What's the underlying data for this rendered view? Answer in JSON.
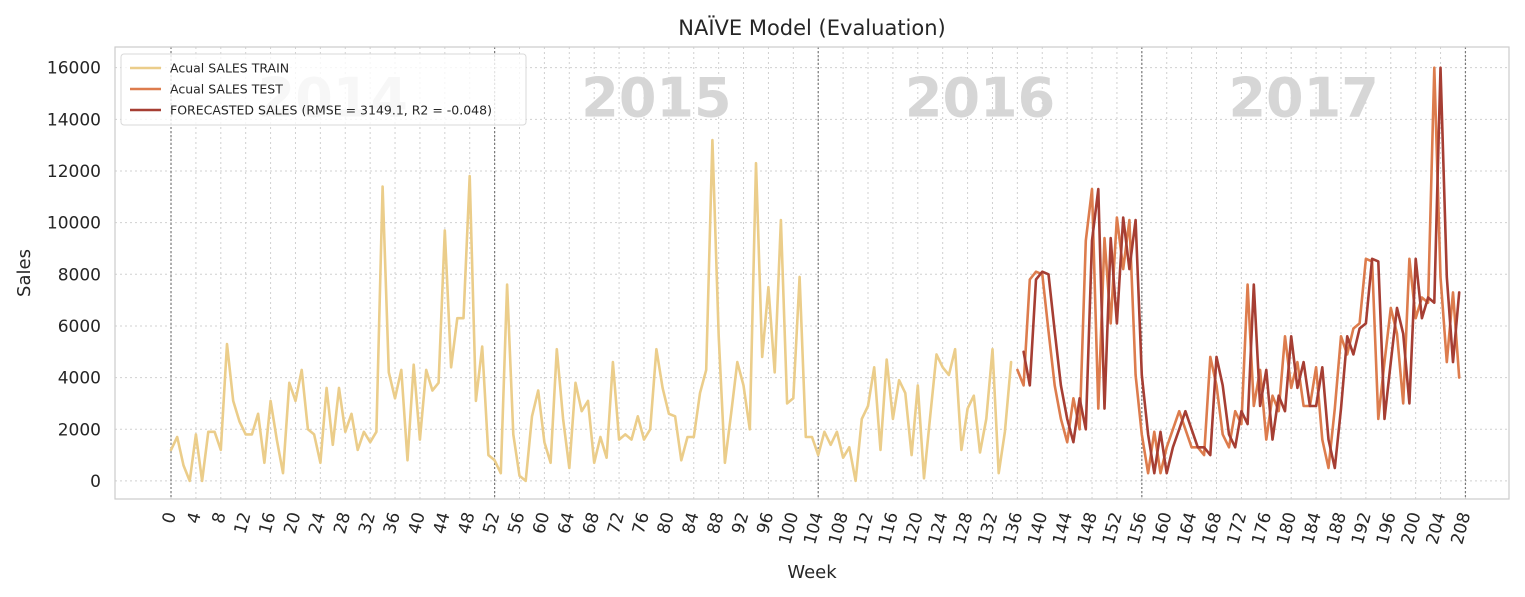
{
  "chart_data": {
    "type": "line",
    "title": "NAÏVE Model (Evaluation)",
    "xlabel": "Week",
    "ylabel": "Sales",
    "xlim": [
      -9,
      215
    ],
    "ylim": [
      -700,
      16800
    ],
    "x_ticks": [
      0,
      4,
      8,
      12,
      16,
      20,
      24,
      28,
      32,
      36,
      40,
      44,
      48,
      52,
      56,
      60,
      64,
      68,
      72,
      76,
      80,
      84,
      88,
      92,
      96,
      100,
      104,
      108,
      112,
      116,
      120,
      124,
      128,
      132,
      136,
      140,
      144,
      148,
      152,
      156,
      160,
      164,
      168,
      172,
      176,
      180,
      184,
      188,
      192,
      196,
      200,
      204,
      208
    ],
    "y_ticks": [
      0,
      2000,
      4000,
      6000,
      8000,
      10000,
      12000,
      14000,
      16000
    ],
    "grid": true,
    "legend_position": "upper-left",
    "year_boundaries": [
      0,
      52,
      104,
      156,
      208
    ],
    "year_labels": [
      {
        "text": "2014",
        "x": 26,
        "y": 14100
      },
      {
        "text": "2015",
        "x": 78,
        "y": 14100
      },
      {
        "text": "2016",
        "x": 130,
        "y": 14100
      },
      {
        "text": "2017",
        "x": 182,
        "y": 14100
      }
    ],
    "series": [
      {
        "name": "Acual SALES TRAIN",
        "color": "#ebcd8a",
        "x_start": 0,
        "values": [
          1200,
          1700,
          600,
          0,
          1800,
          0,
          1900,
          1900,
          1200,
          5300,
          3100,
          2300,
          1800,
          1800,
          2600,
          700,
          3100,
          1600,
          300,
          3800,
          3100,
          4300,
          2000,
          1800,
          700,
          3600,
          1400,
          3600,
          1900,
          2600,
          1200,
          1900,
          1500,
          1900,
          11400,
          4200,
          3200,
          4300,
          800,
          4500,
          1600,
          4300,
          3500,
          3800,
          9700,
          4400,
          6300,
          6300,
          11800,
          3100,
          5200,
          1000,
          800,
          300,
          7600,
          1800,
          200,
          0,
          2500,
          3500,
          1500,
          700,
          5100,
          2400,
          500,
          3800,
          2700,
          3100,
          700,
          1700,
          900,
          4600,
          1600,
          1800,
          1600,
          2500,
          1600,
          2000,
          5100,
          3600,
          2600,
          2500,
          800,
          1700,
          1700,
          3400,
          4300,
          13200,
          5600,
          700,
          2600,
          4600,
          3700,
          2000,
          12300,
          4800,
          7500,
          4200,
          10100,
          3000,
          3200,
          7900,
          1700,
          1700,
          1000,
          1900,
          1400,
          1900,
          900,
          1300,
          0,
          2400,
          2900,
          4400,
          1200,
          4700,
          2400,
          3900,
          3400,
          1000,
          3700,
          100,
          2500,
          4900,
          4400,
          4100,
          5100,
          1200,
          2800,
          3300,
          1100,
          2400,
          5100,
          300,
          1900,
          4600
        ]
      },
      {
        "name": "Acual SALES TEST",
        "color": "#dd7c4d",
        "x_start": 136,
        "values": [
          4300,
          3700,
          7800,
          8100,
          8000,
          5800,
          3700,
          2400,
          1500,
          3200,
          2000,
          9300,
          11300,
          2800,
          9400,
          6100,
          10200,
          8200,
          10100,
          4100,
          1800,
          300,
          1900,
          300,
          1300,
          2000,
          2700,
          2000,
          1300,
          1300,
          1000,
          4800,
          3700,
          1800,
          1300,
          2700,
          2200,
          7600,
          2900,
          4300,
          1600,
          3300,
          2700,
          5600,
          3600,
          4600,
          2900,
          2900,
          4400,
          1600,
          500,
          2800,
          5600,
          4900,
          5900,
          6100,
          8600,
          8500,
          2400,
          4600,
          6700,
          5700,
          3000,
          8600,
          6300,
          7100,
          6900,
          16000,
          7900,
          4600,
          7300,
          4000
        ]
      },
      {
        "name": "FORECASTED SALES (RMSE = 3149.1, R2 = -0.048)",
        "color": "#a63e33",
        "x_start": 137,
        "values": [
          4300,
          3700,
          7800,
          8100,
          8000,
          5800,
          3700,
          2400,
          1500,
          3200,
          2000,
          9300,
          11300,
          2800,
          9400,
          6100,
          10200,
          8200,
          10100,
          4100,
          1800,
          300,
          1900,
          300,
          1300,
          2000,
          2700,
          2000,
          1300,
          1300,
          1000,
          4800,
          3700,
          1800,
          1300,
          2700,
          2200,
          7600,
          2900,
          4300,
          1600,
          3300,
          2700,
          5600,
          3600,
          4600,
          2900,
          2900,
          4400,
          1600,
          500,
          2800,
          5600,
          4900,
          5900,
          6100,
          8600,
          8500,
          2400,
          4600,
          6700,
          5700,
          3000,
          8600,
          6300,
          7100,
          6900,
          16000,
          7900,
          4600,
          7300
        ],
        "first_value": 5000
      }
    ]
  }
}
